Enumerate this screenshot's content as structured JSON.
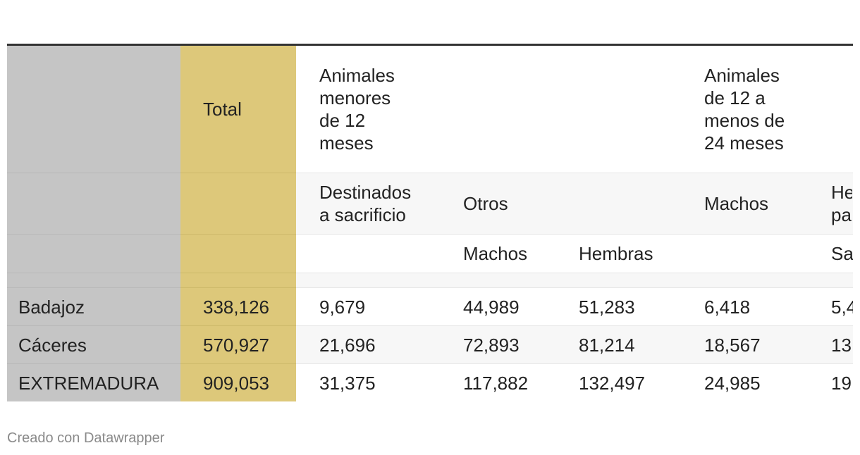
{
  "table": {
    "header_row_1": {
      "total_label": "Total",
      "group_under_12": "Animales menores de 12 meses",
      "group_12_to_24": "Animales de 12 a menos de 24 meses"
    },
    "header_row_2": {
      "destinados": "Destinados a sacrificio",
      "otros": "Otros",
      "machos": "Machos",
      "hembras_para_cut": "He pa"
    },
    "header_row_3": {
      "machos": "Machos",
      "hembras": "Hembras",
      "sa_cut": "Sa"
    },
    "rows": [
      {
        "name": "Badajoz",
        "total": "338,126",
        "destinados": "9,679",
        "otros_machos": "44,989",
        "otros_hembras": "51,283",
        "machos_12_24": "6,418",
        "last_cut": "5,4"
      },
      {
        "name": "Cáceres",
        "total": "570,927",
        "destinados": "21,696",
        "otros_machos": "72,893",
        "otros_hembras": "81,214",
        "machos_12_24": "18,567",
        "last_cut": "13"
      },
      {
        "name": "EXTREMADURA",
        "total": "909,053",
        "destinados": "31,375",
        "otros_machos": "117,882",
        "otros_hembras": "132,497",
        "machos_12_24": "24,985",
        "last_cut": "19"
      }
    ]
  },
  "footer": {
    "credit": "Creado con Datawrapper"
  },
  "colors": {
    "row_name_column": "#c5c5c5",
    "total_column": "#ddc87a",
    "top_rule": "#333333",
    "stripe": "#f7f7f7"
  }
}
